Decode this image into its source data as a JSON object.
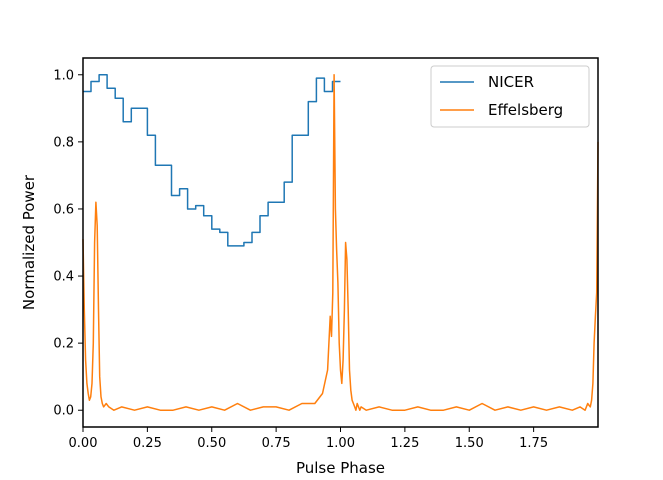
{
  "chart_data": {
    "type": "line",
    "title": "",
    "xlabel": "Pulse Phase",
    "ylabel": "Normalized Power",
    "xlim": [
      0.0,
      2.0
    ],
    "ylim": [
      -0.05,
      1.05
    ],
    "xticks": [
      0.0,
      0.25,
      0.5,
      0.75,
      1.0,
      1.25,
      1.5,
      1.75
    ],
    "xtick_labels": [
      "0.00",
      "0.25",
      "0.50",
      "0.75",
      "1.00",
      "1.25",
      "1.50",
      "1.75"
    ],
    "yticks": [
      0.0,
      0.2,
      0.4,
      0.6,
      0.8,
      1.0
    ],
    "ytick_labels": [
      "0.0",
      "0.2",
      "0.4",
      "0.6",
      "0.8",
      "1.0"
    ],
    "grid": false,
    "legend_position": "top-right",
    "series": [
      {
        "name": "NICER",
        "color": "#1f77b4",
        "style": "step",
        "bin_width": 0.03125,
        "values": [
          0.95,
          0.98,
          1.0,
          0.96,
          0.93,
          0.86,
          0.9,
          0.9,
          0.82,
          0.73,
          0.73,
          0.64,
          0.66,
          0.6,
          0.61,
          0.58,
          0.54,
          0.53,
          0.49,
          0.49,
          0.5,
          0.53,
          0.58,
          0.62,
          0.62,
          0.68,
          0.82,
          0.82,
          0.92,
          0.99,
          0.95,
          0.98
        ]
      },
      {
        "name": "Effelsberg",
        "color": "#ff7f0e",
        "style": "line",
        "x": [
          0.0,
          0.005,
          0.01,
          0.015,
          0.02,
          0.025,
          0.03,
          0.035,
          0.04,
          0.045,
          0.05,
          0.055,
          0.06,
          0.065,
          0.07,
          0.075,
          0.08,
          0.09,
          0.1,
          0.12,
          0.15,
          0.2,
          0.25,
          0.3,
          0.35,
          0.4,
          0.45,
          0.5,
          0.55,
          0.6,
          0.65,
          0.7,
          0.75,
          0.8,
          0.85,
          0.9,
          0.93,
          0.95,
          0.96,
          0.965,
          0.97,
          0.975,
          0.98,
          0.985,
          0.99,
          0.995,
          1.0,
          1.005,
          1.01,
          1.015,
          1.02,
          1.025,
          1.03,
          1.035,
          1.04,
          1.045,
          1.05,
          1.055,
          1.06,
          1.065,
          1.07,
          1.075,
          1.08,
          1.1,
          1.15,
          1.2,
          1.25,
          1.3,
          1.35,
          1.4,
          1.45,
          1.5,
          1.55,
          1.6,
          1.65,
          1.7,
          1.75,
          1.8,
          1.85,
          1.9,
          1.93,
          1.95,
          1.96,
          1.97,
          1.975,
          1.98,
          1.985,
          1.99,
          1.995,
          2.0
        ],
        "y": [
          0.51,
          0.3,
          0.15,
          0.08,
          0.05,
          0.03,
          0.04,
          0.08,
          0.2,
          0.5,
          0.62,
          0.55,
          0.3,
          0.1,
          0.04,
          0.02,
          0.01,
          0.02,
          0.01,
          0.0,
          0.01,
          0.0,
          0.01,
          0.0,
          0.0,
          0.01,
          0.0,
          0.01,
          0.0,
          0.02,
          0.0,
          0.01,
          0.01,
          0.0,
          0.02,
          0.02,
          0.05,
          0.12,
          0.28,
          0.22,
          0.35,
          1.0,
          0.6,
          0.48,
          0.38,
          0.2,
          0.12,
          0.08,
          0.15,
          0.3,
          0.5,
          0.45,
          0.3,
          0.12,
          0.06,
          0.03,
          0.02,
          0.01,
          0.0,
          0.02,
          0.01,
          0.0,
          0.01,
          0.0,
          0.01,
          0.0,
          0.0,
          0.01,
          0.0,
          0.0,
          0.01,
          0.0,
          0.02,
          0.0,
          0.01,
          0.0,
          0.01,
          0.0,
          0.01,
          0.0,
          0.01,
          0.0,
          0.02,
          0.01,
          0.03,
          0.08,
          0.2,
          0.28,
          0.35,
          0.8
        ]
      }
    ]
  }
}
